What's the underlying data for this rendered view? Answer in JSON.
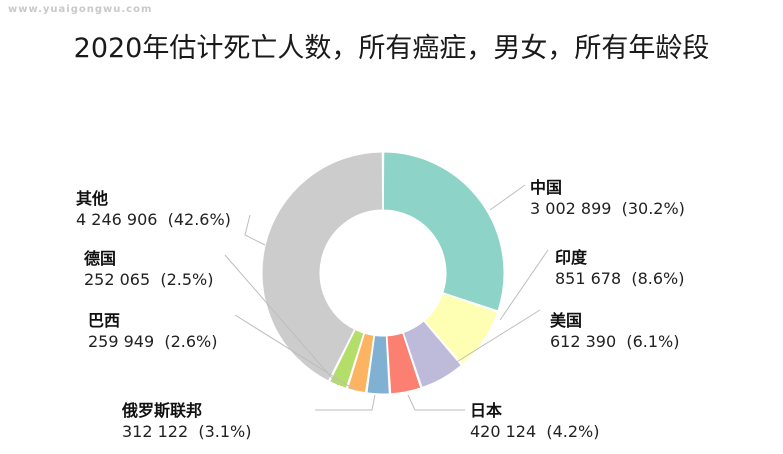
{
  "watermark": "www.yuaigongwu.com",
  "chart_data": {
    "type": "pie",
    "donut": true,
    "title": "2020年估计死亡人数，所有癌症，男女，所有年龄段",
    "slices": [
      {
        "label": "中国",
        "value": 3002899,
        "value_text": "3 002 899",
        "pct_text": "(30.2%)",
        "color": "#8dd3c7"
      },
      {
        "label": "印度",
        "value": 851678,
        "value_text": "851 678",
        "pct_text": "(8.6%)",
        "color": "#ffffb3"
      },
      {
        "label": "美国",
        "value": 612390,
        "value_text": "612 390",
        "pct_text": "(6.1%)",
        "color": "#bebada"
      },
      {
        "label": "日本",
        "value": 420124,
        "value_text": "420 124",
        "pct_text": "(4.2%)",
        "color": "#fb8072"
      },
      {
        "label": "俄罗斯联邦",
        "value": 312122,
        "value_text": "312 122",
        "pct_text": "(3.1%)",
        "color": "#80b1d3"
      },
      {
        "label": "巴西",
        "value": 259949,
        "value_text": "259 949",
        "pct_text": "(2.6%)",
        "color": "#fdb462"
      },
      {
        "label": "德国",
        "value": 252065,
        "value_text": "252 065",
        "pct_text": "(2.5%)",
        "color": "#b3de69"
      },
      {
        "label": "其他",
        "value": 4246906,
        "value_text": "4 246 906",
        "pct_text": "(42.6%)",
        "color": "#cccccc"
      }
    ]
  }
}
